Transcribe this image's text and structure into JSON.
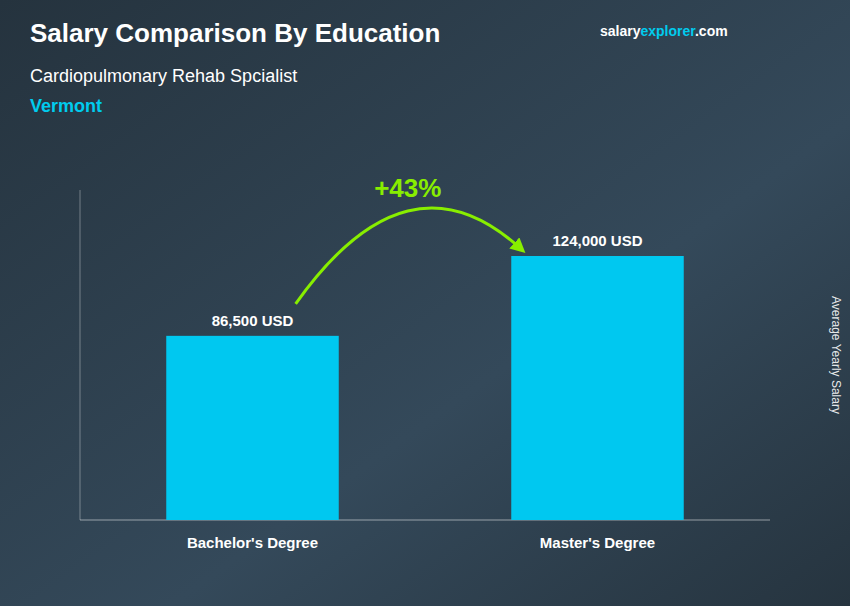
{
  "chart_data": {
    "type": "bar",
    "title": "Salary Comparison By Education",
    "subtitle": [
      "Cardiopulmonary Rehab Spcialist",
      "Vermont"
    ],
    "annotations": [
      "+43%",
      "salary",
      "explorer",
      ".com"
    ],
    "y_label": "Average Yearly Salary",
    "categories": [
      "Bachelor's Degree",
      "Master's Degree"
    ],
    "values": [
      86500,
      124000
    ],
    "value_labels": [
      "86,500 USD",
      "124,000 USD"
    ],
    "data_labels": true,
    "color": "#00c8f0",
    "ylim": [
      0,
      155000
    ],
    "tick_labels": false,
    "grid": false
  }
}
